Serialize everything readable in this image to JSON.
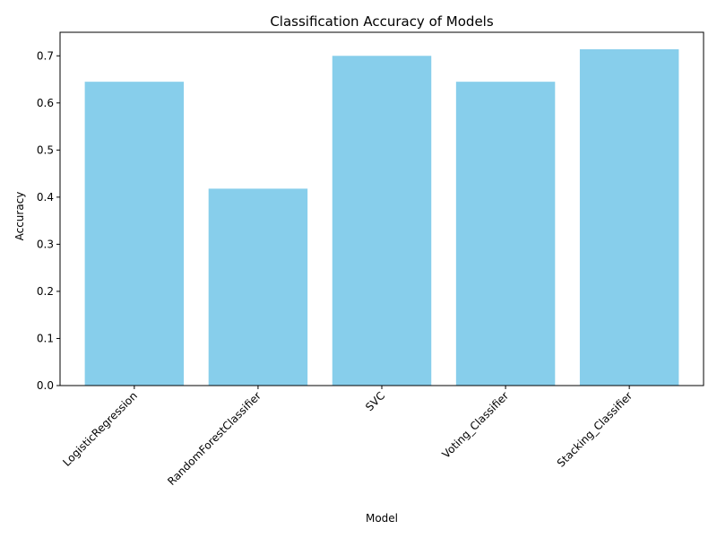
{
  "chart_data": {
    "type": "bar",
    "title": "Classification Accuracy of Models",
    "xlabel": "Model",
    "ylabel": "Accuracy",
    "categories": [
      "LogisticRegression",
      "RandomForestClassifier",
      "SVC",
      "Voting_Classifier",
      "Stacking_Classifier"
    ],
    "values": [
      0.645,
      0.418,
      0.7,
      0.645,
      0.714
    ],
    "ylim": [
      0,
      0.75
    ],
    "yticks": [
      "0.0",
      "0.1",
      "0.2",
      "0.3",
      "0.4",
      "0.5",
      "0.6",
      "0.7"
    ],
    "bar_color": "#87ceeb",
    "grid": false,
    "legend": "none",
    "xtick_rotation": "45 degrees"
  }
}
